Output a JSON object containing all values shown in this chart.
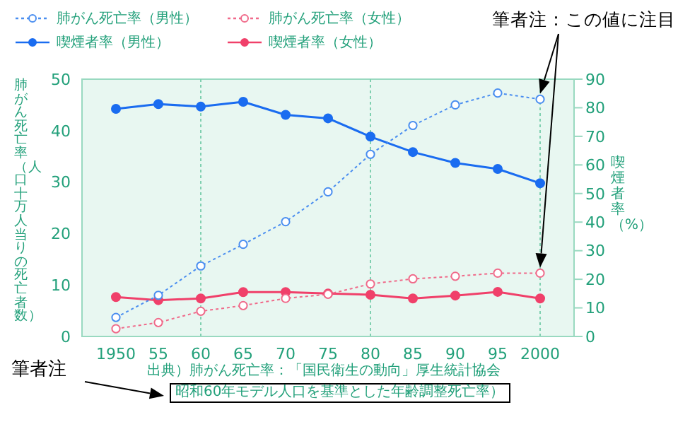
{
  "chart_data": {
    "type": "line",
    "x": [
      1950,
      1955,
      1960,
      1965,
      1970,
      1975,
      1980,
      1985,
      1990,
      1995,
      2000
    ],
    "xlim": [
      1946,
      2004
    ],
    "xticks": [
      {
        "value": 1950,
        "label": "1950"
      },
      {
        "value": 1955,
        "label": "55"
      },
      {
        "value": 1960,
        "label": "60"
      },
      {
        "value": 1965,
        "label": "65"
      },
      {
        "value": 1970,
        "label": "70"
      },
      {
        "value": 1975,
        "label": "75"
      },
      {
        "value": 1980,
        "label": "80"
      },
      {
        "value": 1985,
        "label": "85"
      },
      {
        "value": 1990,
        "label": "90"
      },
      {
        "value": 1995,
        "label": "95"
      },
      {
        "value": 2000,
        "label": "2000"
      }
    ],
    "ylim": [
      0,
      50
    ],
    "yticks": [
      0,
      10,
      20,
      30,
      40,
      50
    ],
    "y2lim": [
      0,
      90
    ],
    "y2ticks": [
      0,
      10,
      20,
      30,
      40,
      50,
      60,
      70,
      80,
      90
    ],
    "ylabel": "肺がん死亡率（人口十万人当りの死亡者数）",
    "y2label": "喫煙者率（%）",
    "series": [
      {
        "name": "肺がん死亡率（男性）",
        "color": "#4a8ef0",
        "line_style": "dotted",
        "values": [
          3.7,
          8.0,
          13.7,
          17.9,
          22.3,
          28.1,
          35.4,
          41.0,
          45.0,
          47.3,
          46.1
        ]
      },
      {
        "name": "肺がん死亡率（女性）",
        "color": "#f06a8a",
        "line_style": "dotted",
        "values": [
          1.5,
          2.7,
          4.9,
          6.0,
          7.4,
          8.2,
          10.2,
          11.2,
          11.7,
          12.3,
          12.3
        ]
      },
      {
        "name": "喫煙者率（男性）",
        "color": "#1a6cf0",
        "line_style": "solid",
        "axis": "y2",
        "values": [
          79.6,
          81.3,
          80.4,
          82.1,
          77.5,
          76.3,
          69.9,
          64.5,
          60.7,
          58.6,
          53.6
        ]
      },
      {
        "name": "喫煙者率（女性）",
        "color": "#f0406a",
        "line_style": "solid",
        "axis": "y2",
        "values": [
          13.8,
          12.7,
          13.3,
          15.5,
          15.5,
          15.0,
          14.6,
          13.3,
          14.3,
          15.6,
          13.3
        ]
      }
    ],
    "marker": "circle",
    "ref_lines": [
      {
        "axis": "x",
        "value": 1960,
        "line_style": "dotted",
        "color": "#7fd0b0"
      },
      {
        "axis": "x",
        "value": 1980,
        "line_style": "dotted",
        "color": "#7fd0b0"
      },
      {
        "axis": "x",
        "value": 2000,
        "line_style": "dotted",
        "color": "#7fd0b0"
      }
    ],
    "legend": "top left",
    "annotations": [
      "出典）肺がん死亡率：「国民衛生の動向」厚生統計協会",
      "昭和60年モデル人口を基準とした年齢調整死亡率）",
      "筆者注",
      "筆者注：この値に注目"
    ]
  }
}
